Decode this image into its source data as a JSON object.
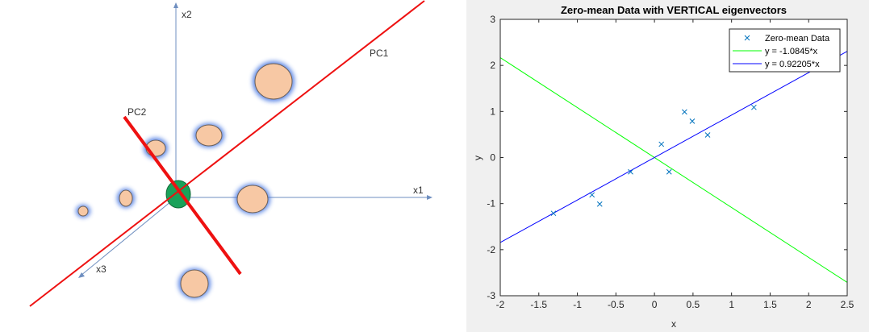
{
  "diagram": {
    "labels": {
      "x1": "x1",
      "x2": "x2",
      "x3": "x3",
      "pc1": "PC1",
      "pc2": "PC2"
    },
    "colors": {
      "axis": "#6f8fc0",
      "pc_line": "#ee1111",
      "blob_fill": "#f7c8a4",
      "blob_stroke": "#6b5f57",
      "blob_glow": "#3d6fe0",
      "center_fill": "#1aa25a"
    }
  },
  "chart_data": {
    "type": "scatter",
    "title": "Zero-mean Data with VERTICAL eigenvectors",
    "xlabel": "x",
    "ylabel": "y",
    "xlim": [
      -2,
      2.5
    ],
    "ylim": [
      -3,
      3
    ],
    "xticks": [
      -2,
      -1.5,
      -1,
      -0.5,
      0,
      0.5,
      1,
      1.5,
      2,
      2.5
    ],
    "yticks": [
      -3,
      -2,
      -1,
      0,
      1,
      2,
      3
    ],
    "xtick_labels": [
      "-2",
      "-1.5",
      "-1",
      "-0.5",
      "0",
      "0.5",
      "1",
      "1.5",
      "2",
      "2.5"
    ],
    "ytick_labels": [
      "-3",
      "-2",
      "-1",
      "0",
      "1",
      "2",
      "3"
    ],
    "grid": false,
    "legend_position": "top-right",
    "series": [
      {
        "name": "Zero-mean Data",
        "kind": "points",
        "marker": "x",
        "color": "#0072bd",
        "x": [
          -1.31,
          -0.81,
          -0.71,
          -0.31,
          0.09,
          0.19,
          0.39,
          0.49,
          0.69,
          1.29
        ],
        "y": [
          -1.21,
          -0.81,
          -1.01,
          -0.31,
          0.29,
          -0.31,
          0.99,
          0.79,
          0.49,
          1.09
        ]
      },
      {
        "name": "y = -1.0845*x",
        "kind": "line",
        "color": "#00ff00",
        "slope": -1.0845
      },
      {
        "name": "y = 0.92205*x",
        "kind": "line",
        "color": "#0000ff",
        "slope": 0.92205
      }
    ]
  }
}
